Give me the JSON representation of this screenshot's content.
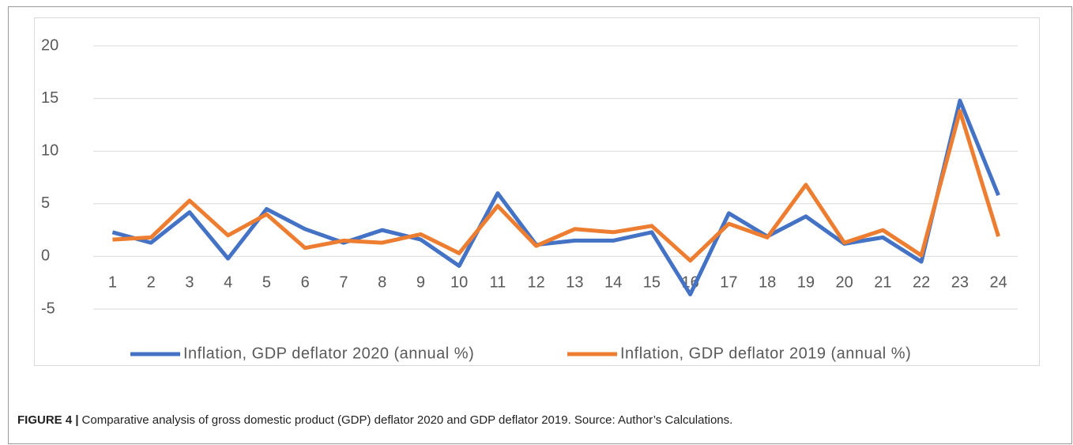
{
  "chart_data": {
    "type": "line",
    "categories": [
      "1",
      "2",
      "3",
      "4",
      "5",
      "6",
      "7",
      "8",
      "9",
      "10",
      "11",
      "12",
      "13",
      "14",
      "15",
      "16",
      "17",
      "18",
      "19",
      "20",
      "21",
      "22",
      "23",
      "24"
    ],
    "series": [
      {
        "name": "Inflation, GDP deflator 2020 (annual %)",
        "color": "#4472c4",
        "values": [
          2.3,
          1.3,
          4.2,
          -0.2,
          4.5,
          2.6,
          1.3,
          2.5,
          1.6,
          -0.9,
          6.0,
          1.1,
          1.5,
          1.5,
          2.3,
          -3.6,
          4.1,
          1.9,
          3.8,
          1.2,
          1.8,
          -0.5,
          14.8,
          5.8
        ]
      },
      {
        "name": "Inflation, GDP deflator 2019 (annual %)",
        "color": "#ed7d31",
        "values": [
          1.6,
          1.8,
          5.3,
          2.0,
          4.0,
          0.8,
          1.5,
          1.3,
          2.1,
          0.3,
          4.8,
          1.0,
          2.6,
          2.3,
          2.9,
          -0.4,
          3.1,
          1.8,
          6.8,
          1.3,
          2.5,
          0.1,
          13.8,
          1.9
        ]
      }
    ],
    "ylim": [
      -5,
      20
    ],
    "yticks": [
      -5,
      0,
      5,
      10,
      15,
      20
    ],
    "grid": true,
    "legend": "bottom",
    "caption_label": "FIGURE 4 |",
    "caption_text": "Comparative analysis of gross domestic product (GDP) deflator 2020 and GDP deflator 2019. Source: Author’s Calculations."
  }
}
